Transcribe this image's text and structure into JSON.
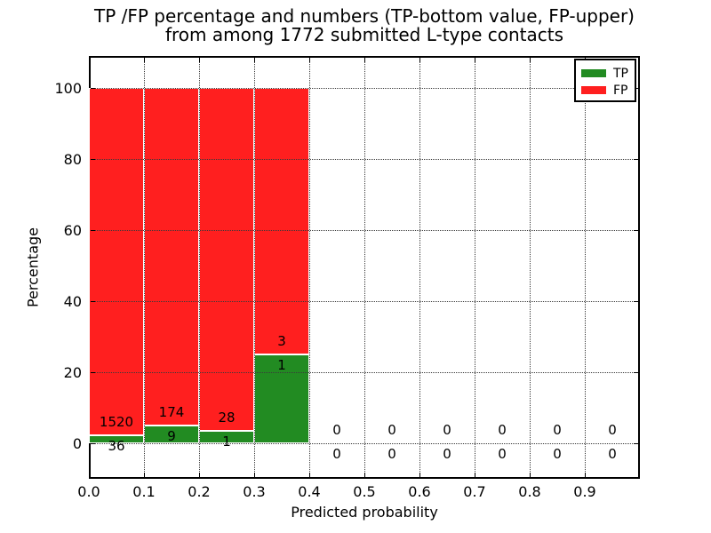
{
  "chart_data": {
    "type": "bar",
    "variant": "stacked-percentage-histogram",
    "title": "TP /FP percentage and numbers (TP-bottom value, FP-upper)",
    "subtitle": "from among 1772 submitted L-type contacts",
    "xlabel": "Predicted probability",
    "ylabel": "Percentage",
    "xlim": [
      0.0,
      1.0
    ],
    "ylim": [
      -10,
      109
    ],
    "x_tick_labels": [
      "0.0",
      "0.1",
      "0.2",
      "0.3",
      "0.4",
      "0.5",
      "0.6",
      "0.7",
      "0.8",
      "0.9"
    ],
    "y_tick_labels": [
      "0",
      "20",
      "40",
      "60",
      "80",
      "100"
    ],
    "x_gridlines": [
      0.1,
      0.2,
      0.3,
      0.4,
      0.5,
      0.6,
      0.7,
      0.8,
      0.9
    ],
    "y_gridlines": [
      0,
      20,
      40,
      60,
      80,
      100
    ],
    "grid_style": "dotted",
    "total_contacts": 1772,
    "note": "Each bin shows TP count (bottom label, green bottom segment) and FP count (upper label, red segment); segments are percentages of the bin total summing to 100%",
    "bins": [
      {
        "x0": 0.0,
        "x1": 0.1,
        "tp": 36,
        "fp": 1520
      },
      {
        "x0": 0.1,
        "x1": 0.2,
        "tp": 9,
        "fp": 174
      },
      {
        "x0": 0.2,
        "x1": 0.3,
        "tp": 1,
        "fp": 28
      },
      {
        "x0": 0.3,
        "x1": 0.4,
        "tp": 1,
        "fp": 3
      },
      {
        "x0": 0.4,
        "x1": 0.5,
        "tp": 0,
        "fp": 0
      },
      {
        "x0": 0.5,
        "x1": 0.6,
        "tp": 0,
        "fp": 0
      },
      {
        "x0": 0.6,
        "x1": 0.7,
        "tp": 0,
        "fp": 0
      },
      {
        "x0": 0.7,
        "x1": 0.8,
        "tp": 0,
        "fp": 0
      },
      {
        "x0": 0.8,
        "x1": 0.9,
        "tp": 0,
        "fp": 0
      },
      {
        "x0": 0.9,
        "x1": 1.0,
        "tp": 0,
        "fp": 0
      }
    ],
    "legend": {
      "position": "upper right",
      "entries": [
        {
          "label": "TP",
          "color": "#228b22"
        },
        {
          "label": "FP",
          "color": "#ff1f1f"
        }
      ]
    },
    "colors": {
      "tp": "#228b22",
      "fp": "#ff1f1f",
      "axis": "#000000",
      "grid": "#3a3a3a",
      "background": "#ffffff",
      "bar_edge": "#ffffff"
    }
  }
}
